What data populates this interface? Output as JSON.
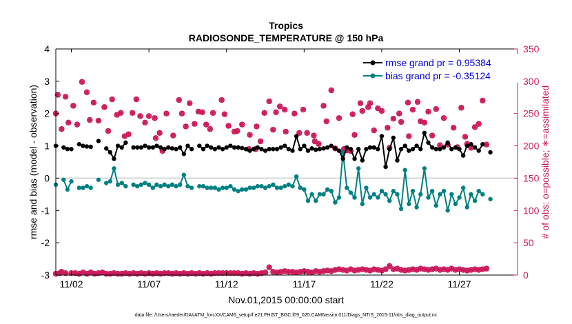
{
  "chart_data": {
    "type": "line",
    "title": "Tropics",
    "subtitle": "RADIOSONDE_TEMPERATURE @ 150 hPa",
    "xlabel": "Nov.01,2015 00:00:00 start",
    "ylabel_left": "rmse and bias (model - observation)",
    "ylabel_right": "# of obs: o=possible; ∗=assimilated",
    "footnote": "data file: /Users/raeder/DAI/ATM_forcXX/CAM6_setup/f.e21.FHIST_BGC.f09_025.CAM6assim.011/Diags_NTrS_2015-11/obs_diag_output.nc",
    "x_ticks": [
      "11/02",
      "11/07",
      "11/12",
      "11/17",
      "11/22",
      "11/27"
    ],
    "x_tick_days": [
      2,
      7,
      12,
      17,
      22,
      27
    ],
    "xlim_days": [
      1.0,
      30.75
    ],
    "x_day_step": 0.25,
    "ylim_left": [
      -3,
      4
    ],
    "yticks_left": [
      "-3",
      "-2",
      "-1",
      "0",
      "1",
      "2",
      "3",
      "4"
    ],
    "ylim_right": [
      0,
      350
    ],
    "yticks_right": [
      "0",
      "50",
      "100",
      "150",
      "200",
      "250",
      "300",
      "350"
    ],
    "grid": false,
    "legend_position": "top-right",
    "colors": {
      "rmse": "#000000",
      "bias": "#008080",
      "obs": "#cc1a5a",
      "right_axis": "#cc1a5a",
      "legend_text": "#0000dd",
      "zero_line": "#cccccc"
    },
    "series": [
      {
        "name": "rmse grand pr = 0.95384",
        "key": "rmse",
        "values": [
          1.0,
          null,
          0.95,
          0.9,
          0.9,
          null,
          1.05,
          1.0,
          0.98,
          0.97,
          null,
          1.15,
          null,
          0.92,
          0.8,
          0.6,
          1.0,
          0.95,
          1.1,
          null,
          0.95,
          0.95,
          0.95,
          1.0,
          0.95,
          0.95,
          1.0,
          0.95,
          0.9,
          0.95,
          0.92,
          0.9,
          0.95,
          0.75,
          1.0,
          0.9,
          null,
          1.0,
          0.9,
          1.0,
          0.95,
          0.9,
          0.95,
          0.9,
          0.95,
          1.0,
          0.95,
          0.95,
          0.93,
          0.9,
          0.85,
          0.9,
          0.95,
          0.9,
          0.85,
          0.9,
          0.9,
          0.9,
          0.95,
          1.0,
          0.9,
          0.85,
          1.3,
          0.9,
          1.0,
          0.85,
          0.92,
          0.88,
          0.9,
          0.92,
          0.95,
          1.0,
          0.92,
          0.85,
          0.6,
          0.95,
          0.9,
          0.6,
          0.9,
          0.55,
          0.9,
          0.95,
          0.95,
          0.9,
          1.3,
          0.35,
          0.9,
          1.25,
          0.55,
          0.9,
          1.0,
          0.85,
          0.9,
          1.0,
          0.9,
          1.4,
          1.1,
          0.95,
          0.9,
          0.9,
          0.95,
          1.1,
          0.9,
          0.95,
          0.9,
          0.7,
          1.0,
          1.05,
          0.95,
          0.85,
          1.05,
          null,
          0.8
        ],
        "marker": "circle"
      },
      {
        "name": "bias grand pr = -0.35124",
        "key": "bias",
        "values": [
          -0.2,
          null,
          -0.05,
          -0.35,
          -0.1,
          null,
          -0.3,
          -0.3,
          -0.25,
          -0.3,
          null,
          -0.05,
          null,
          -0.15,
          -0.1,
          0.3,
          -0.2,
          -0.15,
          -0.25,
          null,
          -0.2,
          -0.25,
          -0.2,
          -0.15,
          -0.2,
          -0.3,
          -0.2,
          -0.25,
          -0.2,
          -0.25,
          -0.2,
          -0.25,
          -0.2,
          0.1,
          -0.25,
          -0.3,
          null,
          -0.25,
          -0.25,
          -0.3,
          -0.3,
          -0.3,
          -0.35,
          -0.3,
          -0.3,
          -0.25,
          -0.35,
          -0.4,
          -0.35,
          -0.35,
          -0.3,
          -0.3,
          -0.25,
          -0.25,
          -0.3,
          -0.25,
          -0.2,
          -0.3,
          -0.3,
          -0.25,
          -0.2,
          -0.25,
          0.05,
          -0.3,
          -0.35,
          -0.7,
          -0.5,
          -0.7,
          -0.5,
          -0.5,
          -0.35,
          -0.4,
          -0.75,
          -0.6,
          0.8,
          -0.3,
          -0.45,
          -0.6,
          0.3,
          -0.8,
          -0.3,
          -0.6,
          -0.5,
          -0.6,
          -0.4,
          -0.5,
          -0.7,
          -0.4,
          -0.5,
          -0.95,
          0.25,
          -0.8,
          -0.4,
          -0.9,
          -0.5,
          0.3,
          -0.6,
          -0.4,
          -0.85,
          -0.5,
          -0.4,
          -1.0,
          -0.5,
          -0.8,
          -0.6,
          -0.3,
          -0.9,
          -0.5,
          -0.7,
          -0.4,
          -0.5,
          null,
          -0.65
        ],
        "marker": "circle"
      },
      {
        "name": "possible",
        "key": "obs_possible",
        "marker": "ring",
        "upper": [
          [
            1,
            250
          ],
          [
            1.5,
            279
          ],
          [
            2.5,
            226
          ],
          [
            3.5,
            276
          ],
          [
            4.25,
            236
          ],
          [
            5.5,
            262
          ],
          [
            6.5,
            233
          ],
          [
            7.75,
            299
          ],
          [
            9,
            283
          ],
          [
            9.75,
            240
          ],
          [
            10.75,
            267
          ],
          [
            12,
            239
          ],
          [
            13.5,
            260
          ],
          [
            14.5,
            223
          ],
          [
            15.5,
            272
          ],
          [
            16.75,
            248
          ],
          [
            17.75,
            251
          ],
          [
            18.75,
            215
          ],
          [
            19.75,
            218
          ],
          [
            20.75,
            251
          ],
          [
            21.75,
            272
          ],
          [
            22.75,
            246
          ],
          [
            24,
            236
          ],
          [
            25,
            246
          ],
          [
            26.5,
            243
          ],
          [
            26.75,
            212
          ],
          [
            27.75,
            220
          ],
          [
            28.5,
            192
          ],
          [
            29.5,
            250
          ],
          [
            31.25,
            216
          ],
          [
            32.75,
            271
          ],
          [
            33.5,
            250
          ],
          [
            34.5,
            230
          ],
          [
            35.5,
            266
          ],
          [
            36.75,
            234
          ],
          [
            37.75,
            253
          ],
          [
            38.75,
            252
          ],
          [
            39.75,
            233
          ],
          [
            40.75,
            226
          ],
          [
            41.5,
            251
          ],
          [
            43.75,
            271
          ],
          [
            44.5,
            249
          ],
          [
            45.5,
            231
          ],
          [
            47,
            222
          ],
          [
            47.75,
            223
          ],
          [
            49,
            233
          ],
          [
            50.75,
            195
          ],
          [
            51,
            217
          ],
          [
            52.5,
            195
          ],
          [
            52.75,
            230
          ],
          [
            53.75,
            207
          ],
          [
            54.75,
            251
          ],
          [
            56,
            269
          ],
          [
            57,
            225
          ],
          [
            57.75,
            252
          ],
          [
            58.75,
            261
          ],
          [
            60,
            256
          ],
          [
            60.25,
            222
          ],
          [
            62.5,
            250
          ],
          [
            63.75,
            220
          ],
          [
            64.75,
            256
          ],
          [
            65.75,
            220
          ],
          [
            67.5,
            216
          ],
          [
            67.75,
            207
          ],
          [
            68.75,
            203
          ],
          [
            70,
            262
          ],
          [
            70.75,
            238
          ],
          [
            72,
            286
          ],
          [
            73,
            196
          ],
          [
            74,
            243
          ],
          [
            75.25,
            195
          ],
          [
            76,
            193
          ],
          [
            77,
            192
          ],
          [
            77.5,
            249
          ],
          [
            78,
            217
          ],
          [
            79.5,
            266
          ],
          [
            80,
            254
          ],
          [
            81.5,
            260
          ],
          [
            82,
            266
          ],
          [
            83,
            224
          ],
          [
            84,
            258
          ],
          [
            85,
            254
          ],
          [
            86.5,
            228
          ],
          [
            87,
            197
          ],
          [
            88,
            242
          ],
          [
            89.5,
            250
          ],
          [
            90,
            237
          ],
          [
            91.75,
            267
          ],
          [
            92,
            215
          ],
          [
            93,
            256
          ],
          [
            94.25,
            268
          ],
          [
            95,
            238
          ],
          [
            96,
            236
          ],
          [
            97,
            253
          ],
          [
            98,
            216
          ],
          [
            99,
            257
          ],
          [
            100,
            201
          ],
          [
            101,
            243
          ],
          [
            102,
            202
          ],
          [
            103.5,
            228
          ],
          [
            104.5,
            198
          ],
          [
            105.5,
            259
          ],
          [
            106.5,
            214
          ],
          [
            107,
            203
          ],
          [
            108,
            197
          ],
          [
            109,
            229
          ],
          [
            110,
            234
          ],
          [
            111,
            270
          ],
          [
            112,
            202
          ]
        ],
        "lower": [
          [
            1,
            2
          ],
          [
            2,
            3
          ],
          [
            2.5,
            5
          ],
          [
            3.5,
            3
          ],
          [
            5,
            3
          ],
          [
            6,
            3
          ],
          [
            7,
            2
          ],
          [
            8,
            4
          ],
          [
            9,
            2
          ],
          [
            10,
            4
          ],
          [
            11,
            2
          ],
          [
            12,
            3
          ],
          [
            13,
            4
          ],
          [
            14,
            2
          ],
          [
            15,
            2
          ],
          [
            16,
            3
          ],
          [
            17,
            2
          ],
          [
            18,
            2
          ],
          [
            19,
            3
          ],
          [
            20,
            2
          ],
          [
            21,
            3
          ],
          [
            22,
            2
          ],
          [
            23,
            3
          ],
          [
            24,
            2
          ],
          [
            25,
            3
          ],
          [
            26,
            2
          ],
          [
            27,
            3
          ],
          [
            28,
            2
          ],
          [
            29,
            3
          ],
          [
            30,
            3
          ],
          [
            31,
            2
          ],
          [
            32,
            3
          ],
          [
            33,
            2
          ],
          [
            34,
            3
          ],
          [
            35,
            2
          ],
          [
            36,
            3
          ],
          [
            37,
            2
          ],
          [
            38,
            3
          ],
          [
            39,
            2
          ],
          [
            40,
            3
          ],
          [
            41,
            2
          ],
          [
            42,
            3
          ],
          [
            43,
            3
          ],
          [
            44,
            3
          ],
          [
            45,
            3
          ],
          [
            46,
            3
          ],
          [
            47,
            3
          ],
          [
            48,
            3
          ],
          [
            49,
            2
          ],
          [
            50,
            3
          ],
          [
            51,
            2
          ],
          [
            52,
            3
          ],
          [
            53,
            2
          ],
          [
            54,
            3
          ],
          [
            55,
            4
          ],
          [
            56,
            12
          ],
          [
            57,
            5
          ],
          [
            58,
            4
          ],
          [
            59,
            5
          ],
          [
            60,
            6
          ],
          [
            61,
            5
          ],
          [
            62,
            5
          ],
          [
            63,
            4
          ],
          [
            64,
            5
          ],
          [
            65,
            6
          ],
          [
            66,
            5
          ],
          [
            67,
            4
          ],
          [
            68,
            6
          ],
          [
            69,
            5
          ],
          [
            70,
            6
          ],
          [
            71,
            7
          ],
          [
            72,
            6
          ],
          [
            73,
            8
          ],
          [
            74,
            9
          ],
          [
            75,
            8
          ],
          [
            76,
            7
          ],
          [
            77,
            9
          ],
          [
            78,
            7
          ],
          [
            79,
            8
          ],
          [
            80,
            9
          ],
          [
            81,
            8
          ],
          [
            82,
            7
          ],
          [
            83,
            9
          ],
          [
            84,
            8
          ],
          [
            85,
            7
          ],
          [
            86,
            9
          ],
          [
            87,
            14
          ],
          [
            88,
            9
          ],
          [
            89,
            10
          ],
          [
            90,
            8
          ],
          [
            91,
            7
          ],
          [
            92,
            8
          ],
          [
            93,
            9
          ],
          [
            94,
            8
          ],
          [
            95,
            10
          ],
          [
            96,
            9
          ],
          [
            97,
            8
          ],
          [
            98,
            9
          ],
          [
            99,
            10
          ],
          [
            100,
            8
          ],
          [
            101,
            9
          ],
          [
            102,
            8
          ],
          [
            103,
            10
          ],
          [
            104,
            8
          ],
          [
            105,
            9
          ],
          [
            106,
            8
          ],
          [
            107,
            7
          ],
          [
            108,
            8
          ],
          [
            109,
            9
          ],
          [
            110,
            8
          ],
          [
            111,
            9
          ],
          [
            112,
            10
          ]
        ]
      },
      {
        "name": "assimilated",
        "key": "obs_assimilated",
        "marker": "star"
      }
    ]
  }
}
